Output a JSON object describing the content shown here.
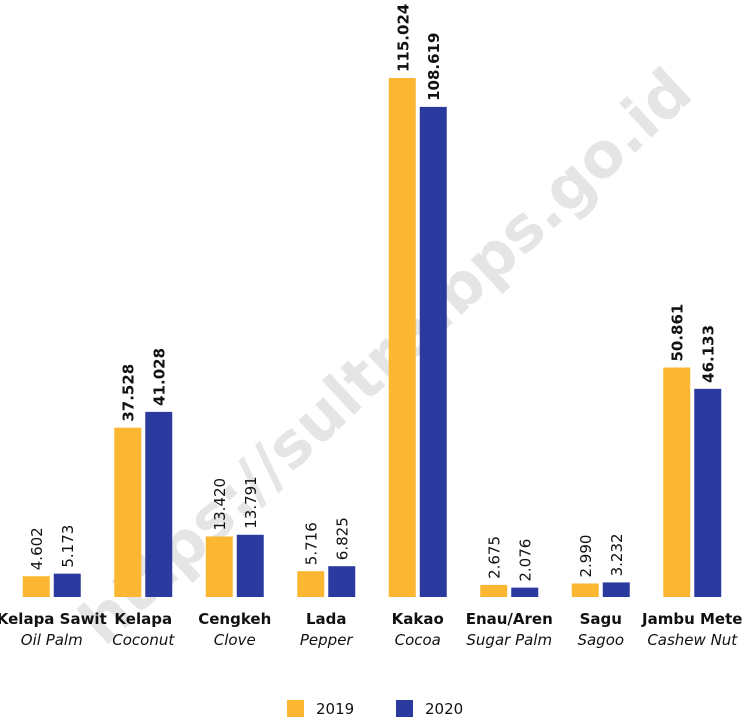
{
  "chart_data": {
    "type": "bar",
    "categories": [
      "Kelapa Sawit",
      "Kelapa",
      "Cengkeh",
      "Lada",
      "Kakao",
      "Enau/Aren",
      "Sagu",
      "Jambu Mete"
    ],
    "categories_en": [
      "Oil Palm",
      "Coconut",
      "Clove",
      "Pepper",
      "Cocoa",
      "Sugar Palm",
      "Sagoo",
      "Cashew Nut"
    ],
    "series": [
      {
        "name": "2019",
        "color": "#fbb731",
        "values": [
          4.602,
          37.528,
          13.42,
          5.716,
          115.024,
          2.675,
          2.99,
          50.861
        ],
        "value_labels": [
          "4.602",
          "37.528",
          "13.420",
          "5.716",
          "115.024",
          "2.675",
          "2.990",
          "50.861"
        ]
      },
      {
        "name": "2020",
        "color": "#2b3a9e",
        "values": [
          5.173,
          41.028,
          13.791,
          6.825,
          108.619,
          2.076,
          3.232,
          46.133
        ],
        "value_labels": [
          "5.173",
          "41.028",
          "13.791",
          "6.825",
          "108.619",
          "2.076",
          "3.232",
          "46.133"
        ]
      }
    ],
    "highlight": [
      false,
      true,
      false,
      false,
      true,
      false,
      false,
      true
    ],
    "watermark": "https://sultra.bps.go.id"
  }
}
